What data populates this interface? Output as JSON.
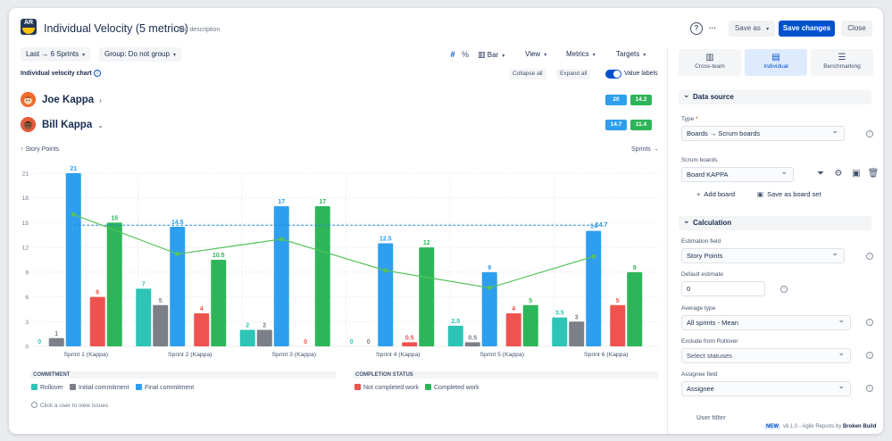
{
  "app": {
    "logo_text": "AR",
    "title": "Individual Velocity (5 metrics)",
    "add_description": "Add description",
    "help_icon": "?",
    "more_icon": "···",
    "save_as": "Save as",
    "save_changes": "Save changes",
    "close": "Close"
  },
  "toolbar": {
    "range": "Last → 6 Sprints",
    "group": "Group: Do not group",
    "hash_icon": "#",
    "percent_icon": "%",
    "chart_type": "Bar",
    "view": "View",
    "metrics": "Metrics",
    "targets": "Targets"
  },
  "chart_header": {
    "title": "Individual velocity chart",
    "info_icon": "i",
    "collapse_all": "Collapse all",
    "expand_all": "Expand all",
    "value_labels": "Value labels"
  },
  "people": [
    {
      "name": "Joe Kappa",
      "arrow": "›",
      "blue_value": "20",
      "green_value": "14.2"
    },
    {
      "name": "Bill Kappa",
      "arrow": "⌄",
      "blue_value": "14.7",
      "green_value": "11.4"
    }
  ],
  "axis": {
    "y_label": "↑ Story Points",
    "x_label": "Sprints →"
  },
  "colors": {
    "rollover": "#2ec4b6",
    "initial": "#7a7f88",
    "final": "#2e9fef",
    "not_completed": "#ef5350",
    "completed": "#2fb559",
    "average_line": "#55c35b",
    "target_line": "#1f8ad1"
  },
  "chart_data": {
    "type": "bar",
    "title": "Individual velocity chart",
    "xlabel": "Sprints",
    "ylabel": "Story Points",
    "ylim": [
      0,
      21
    ],
    "yticks": [
      "0",
      "3",
      "6",
      "9",
      "12",
      "15",
      "18",
      "21"
    ],
    "categories": [
      "Sprint 1 (Kappa)",
      "Sprint 2 (Kappa)",
      "Sprint 3 (Kappa)",
      "Sprint 4 (Kappa)",
      "Sprint 5 (Kappa)",
      "Sprint 6 (Kappa)"
    ],
    "series": [
      {
        "name": "Rollover",
        "group": "commitment",
        "values": [
          0,
          7,
          2,
          0,
          2.5,
          3.5
        ],
        "labels": [
          "0",
          "7",
          "2",
          "0",
          "2.5",
          "3.5"
        ]
      },
      {
        "name": "Initial commitment",
        "group": "commitment",
        "values": [
          1,
          5,
          2,
          0,
          0.5,
          3
        ],
        "labels": [
          "1",
          "5",
          "2",
          "0",
          "0.5",
          "3"
        ]
      },
      {
        "name": "Final commitment",
        "group": "commitment",
        "values": [
          21,
          14.5,
          17,
          12.5,
          9,
          14
        ],
        "labels": [
          "21",
          "14.5",
          "17",
          "12.5",
          "9",
          "14"
        ]
      },
      {
        "name": "Not completed work",
        "group": "completion",
        "values": [
          6,
          4,
          0,
          0.5,
          4,
          5
        ],
        "labels": [
          "6",
          "4",
          "0",
          "0.5",
          "4",
          "5"
        ]
      },
      {
        "name": "Completed work",
        "group": "completion",
        "values": [
          15,
          10.5,
          17,
          12,
          5,
          9
        ],
        "labels": [
          "15",
          "10.5",
          "17",
          "12",
          "5",
          "9"
        ]
      }
    ],
    "average_line": [
      16,
      11.2,
      13,
      9.2,
      7.1,
      10.9
    ],
    "target_value": 14.7,
    "target_label": "14.7"
  },
  "legend": {
    "commitment_title": "COMMITMENT",
    "completion_title": "COMPLETION STATUS",
    "rollover": "Rollover",
    "initial": "Initial commitment",
    "final": "Final commitment",
    "not_completed": "Not completed work",
    "completed": "Completed work",
    "hint": "Click a user to view issues"
  },
  "sidebar": {
    "tabs": [
      "Cross-team",
      "Individual",
      "Benchmarking"
    ],
    "data_source": "Data source",
    "type_label": "Type",
    "type_required": "*",
    "type_value": "Boards → Scrum boards",
    "scrum_boards_label": "Scrum boards",
    "scrum_boards_value": "Board KAPPA",
    "add_board": "Add board",
    "save_board_set": "Save as board set",
    "calculation": "Calculation",
    "estimation_label": "Estimation field",
    "estimation_value": "Story Points",
    "default_estimate_label": "Default estimate",
    "default_estimate_value": "0",
    "average_type_label": "Average type",
    "average_type_value": "All sprints - Mean",
    "exclude_label": "Exclude from Rollover",
    "exclude_placeholder": "Select statuses",
    "assignee_label": "Assignee field",
    "assignee_value": "Assignee",
    "next_section": "User filter"
  },
  "footer": {
    "badge": "NEW",
    "version": "v8.1.0 - Agile Reports by",
    "brand": "Broken Build"
  }
}
